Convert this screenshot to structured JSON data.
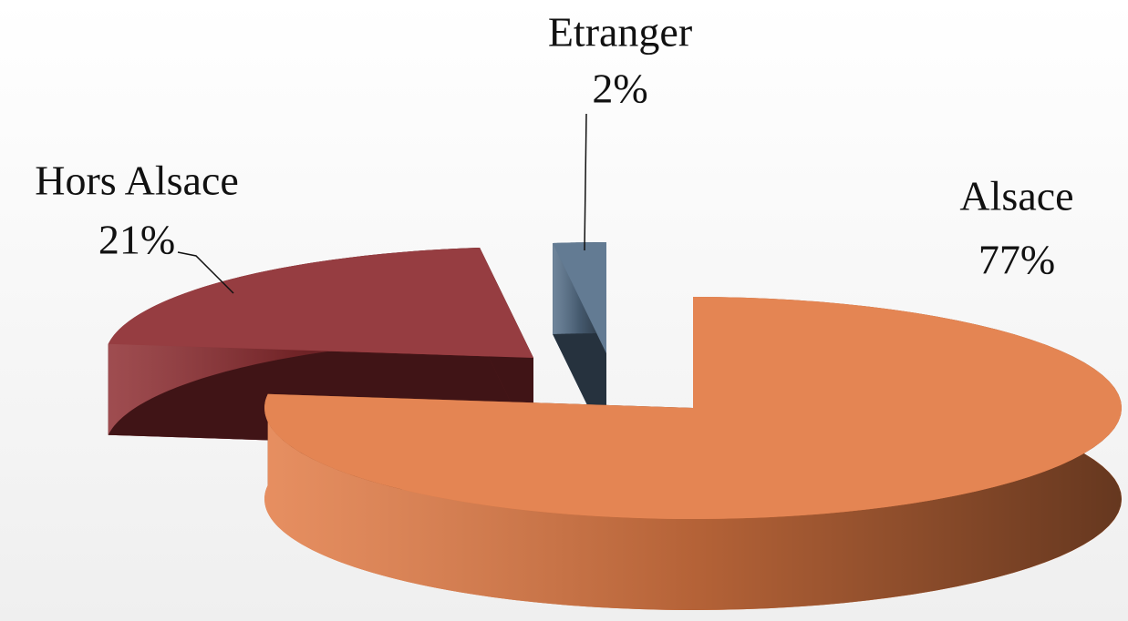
{
  "chart_data": {
    "type": "pie3d",
    "categories": [
      "Alsace",
      "Hors Alsace",
      "Etranger"
    ],
    "values": [
      77,
      21,
      2
    ],
    "value_labels": [
      "77%",
      "21%",
      "2%"
    ],
    "colors": [
      "#e27b45",
      "#8e2d31",
      "#56708a"
    ]
  }
}
